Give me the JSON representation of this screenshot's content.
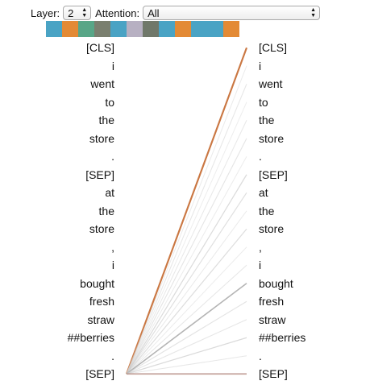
{
  "controls": {
    "layer_label": "Layer:",
    "layer_value": "2",
    "attention_label": "Attention:",
    "attention_value": "All"
  },
  "head_colors": [
    "#4aa3c4",
    "#e38a35",
    "#58a687",
    "#7a7f6f",
    "#4aa3c4",
    "#b7b0c2",
    "#70786a",
    "#4aa3c4",
    "#e38a35",
    "#4aa3c4",
    "#4aa3c4",
    "#e38a35"
  ],
  "tokens_left": [
    "[CLS]",
    "i",
    "went",
    "to",
    "the",
    "store",
    ".",
    "[SEP]",
    "at",
    "the",
    "store",
    ",",
    "i",
    "bought",
    "fresh",
    "straw",
    "##berries",
    ".",
    "[SEP]"
  ],
  "tokens_right": [
    "[CLS]",
    "i",
    "went",
    "to",
    "the",
    "store",
    ".",
    "[SEP]",
    "at",
    "the",
    "store",
    ",",
    "i",
    "bought",
    "fresh",
    "straw",
    "##berries",
    ".",
    "[SEP]"
  ],
  "selected_left_index": 18,
  "attention_from_selected": [
    0.95,
    0.12,
    0.18,
    0.1,
    0.15,
    0.2,
    0.12,
    0.3,
    0.25,
    0.14,
    0.28,
    0.12,
    0.16,
    0.55,
    0.22,
    0.2,
    0.3,
    0.18,
    0.6
  ],
  "attention_line_colors": [
    "#c8733c",
    "#d6d6d6",
    "#d2d2d2",
    "#dadada",
    "#d4d4d4",
    "#cfcfcf",
    "#d9d9d9",
    "#c4c4c4",
    "#c9c9c9",
    "#d6d6d6",
    "#c6c6c6",
    "#d8d8d8",
    "#d0d0d0",
    "#9b9b9b",
    "#cdcdcd",
    "#d2d2d2",
    "#c2c2c2",
    "#d3d3d3",
    "#b58a82"
  ]
}
